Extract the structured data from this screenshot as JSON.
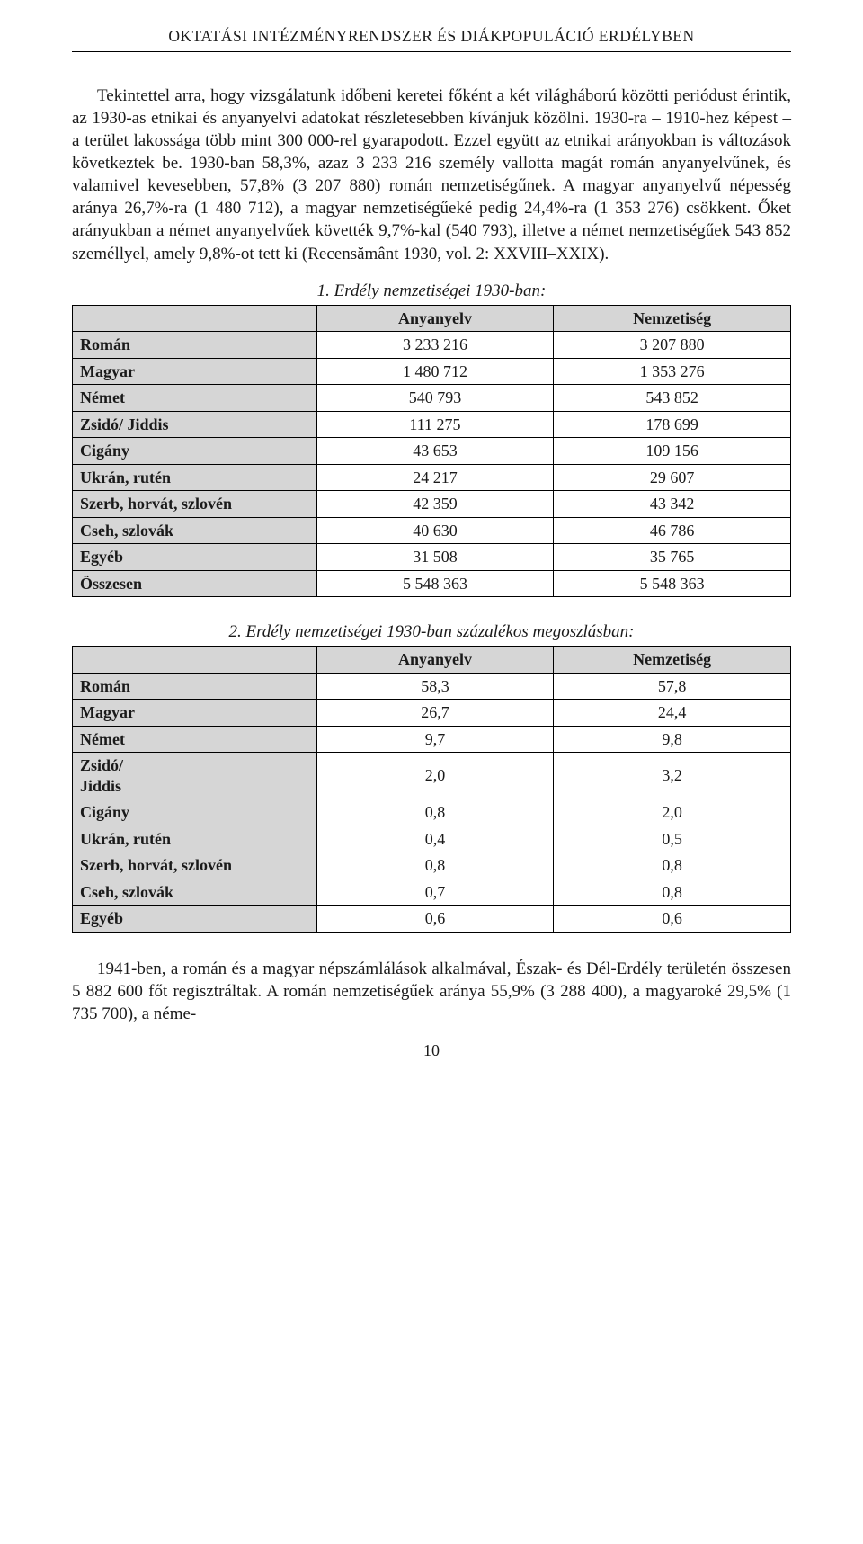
{
  "runningHead": "OKTATÁSI INTÉZMÉNYRENDSZER ÉS DIÁKPOPULÁCIÓ ERDÉLYBEN",
  "para1": "Tekintettel arra, hogy vizsgálatunk időbeni keretei főként a két világháború közötti periódust érintik, az 1930-as etnikai és anyanyelvi adatokat részletesebben kívánjuk közölni. 1930-ra – 1910-hez képest – a terület lakossága több mint 300 000-rel gyarapodott. Ezzel együtt az etnikai arányokban is változások következtek be. 1930-ban 58,3%, azaz 3 233 216 személy vallotta magát román anyanyelvűnek, és valamivel kevesebben, 57,8% (3 207 880) román nemzetiségűnek. A magyar anyanyelvű népesség aránya 26,7%-ra (1 480 712), a magyar nemzetiségűeké pedig 24,4%-ra (1 353 276) csökkent. Őket arányukban a német anyanyelvűek követték 9,7%-kal (540 793), illetve a német nemzetiségűek 543 852 személlyel, amely 9,8%-ot tett ki (Recensământ 1930, vol. 2: XXVIII–XXIX).",
  "table1": {
    "caption": "1. Erdély nemzetiségei 1930-ban:",
    "headers": {
      "col1": "Anyanyelv",
      "col2": "Nemzetiség"
    },
    "rows": [
      {
        "label": "Román",
        "c1": "3 233 216",
        "c2": "3 207 880"
      },
      {
        "label": "Magyar",
        "c1": "1 480 712",
        "c2": "1 353 276"
      },
      {
        "label": "Német",
        "c1": "540 793",
        "c2": "543 852"
      },
      {
        "label": "Zsidó/ Jiddis",
        "c1": "111 275",
        "c2": "178 699"
      },
      {
        "label": "Cigány",
        "c1": "43 653",
        "c2": "109 156"
      },
      {
        "label": "Ukrán, rutén",
        "c1": "24 217",
        "c2": "29 607"
      },
      {
        "label": "Szerb, horvát, szlovén",
        "c1": "42 359",
        "c2": "43 342"
      },
      {
        "label": "Cseh, szlovák",
        "c1": "40 630",
        "c2": "46 786"
      },
      {
        "label": "Egyéb",
        "c1": "31 508",
        "c2": "35 765"
      },
      {
        "label": "Összesen",
        "c1": "5 548 363",
        "c2": "5 548 363"
      }
    ]
  },
  "table2": {
    "caption": "2. Erdély nemzetiségei 1930-ban százalékos megoszlásban:",
    "headers": {
      "col1": "Anyanyelv",
      "col2": "Nemzetiség"
    },
    "rows": [
      {
        "label": "Román",
        "c1": "58,3",
        "c2": "57,8"
      },
      {
        "label": "Magyar",
        "c1": "26,7",
        "c2": "24,4"
      },
      {
        "label": "Német",
        "c1": "9,7",
        "c2": "9,8"
      },
      {
        "label": "Zsidó/\nJiddis",
        "c1": "2,0",
        "c2": "3,2"
      },
      {
        "label": "Cigány",
        "c1": "0,8",
        "c2": "2,0"
      },
      {
        "label": "Ukrán, rutén",
        "c1": "0,4",
        "c2": "0,5"
      },
      {
        "label": "Szerb, horvát, szlovén",
        "c1": "0,8",
        "c2": "0,8"
      },
      {
        "label": "Cseh, szlovák",
        "c1": "0,7",
        "c2": "0,8"
      },
      {
        "label": "Egyéb",
        "c1": "0,6",
        "c2": "0,6"
      }
    ]
  },
  "para2": "1941-ben, a román és a magyar népszámlálások alkalmával, Észak- és Dél-Erdély területén összesen 5 882 600 főt regisztráltak. A román nemzetiségűek aránya 55,9% (3 288 400), a magyaroké 29,5% (1 735 700), a néme-",
  "pageNumber": "10"
}
